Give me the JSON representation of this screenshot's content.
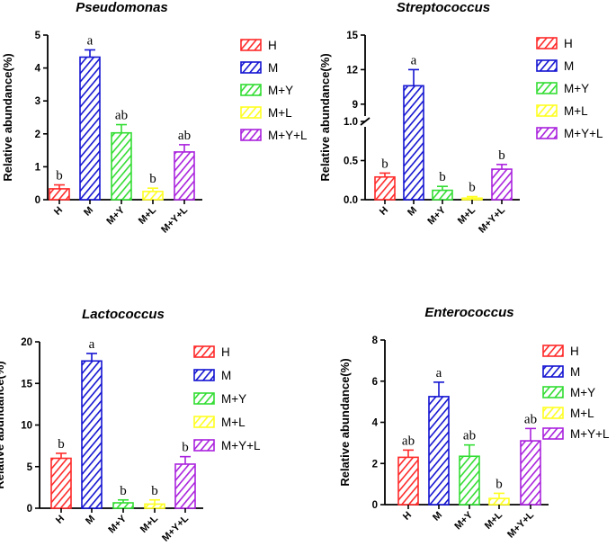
{
  "colors": {
    "H": "#ff2a2a",
    "M": "#1414d2",
    "M+Y": "#33dd33",
    "M+L": "#ffff22",
    "M+Y+L": "#aa22dd"
  },
  "chart_data": [
    {
      "type": "bar",
      "title": "Pseudomonas",
      "ylabel": "Relative abundance(%)",
      "xlabel": "",
      "categories": [
        "H",
        "M",
        "M+Y",
        "M+L",
        "M+Y+L"
      ],
      "values": [
        0.33,
        4.33,
        2.03,
        0.25,
        1.45
      ],
      "errors": [
        0.12,
        0.22,
        0.25,
        0.1,
        0.22
      ],
      "significance": [
        "b",
        "a",
        "ab",
        "b",
        "ab"
      ],
      "ylim": [
        0,
        5
      ],
      "yticks": [
        "0",
        "1",
        "2",
        "3",
        "4",
        "5"
      ],
      "legend": [
        "H",
        "M",
        "M+Y",
        "M+L",
        "M+Y+L"
      ]
    },
    {
      "type": "bar",
      "title": "Streptococcus",
      "ylabel": "Relative abundance(%)",
      "xlabel": "",
      "categories": [
        "H",
        "M",
        "M+Y",
        "M+L",
        "M+Y+L"
      ],
      "values": [
        0.29,
        10.6,
        0.12,
        0.02,
        0.39
      ],
      "errors": [
        0.05,
        1.4,
        0.05,
        0.02,
        0.06
      ],
      "significance": [
        "b",
        "a",
        "b",
        "b",
        "b"
      ],
      "ylim": [
        0,
        15
      ],
      "axis_break": [
        1,
        7.5
      ],
      "yticks": [
        "0.0",
        "0.5",
        "1.0",
        "9",
        "12",
        "15"
      ],
      "legend": [
        "H",
        "M",
        "M+Y",
        "M+L",
        "M+Y+L"
      ]
    },
    {
      "type": "bar",
      "title": "Lactococcus",
      "ylabel": "Relative abundance(%)",
      "xlabel": "",
      "categories": [
        "H",
        "M",
        "M+Y",
        "M+L",
        "M+Y+L"
      ],
      "values": [
        6.0,
        17.7,
        0.65,
        0.5,
        5.3
      ],
      "errors": [
        0.6,
        0.9,
        0.35,
        0.5,
        0.9
      ],
      "significance": [
        "b",
        "a",
        "b",
        "b",
        "b"
      ],
      "ylim": [
        0,
        20
      ],
      "yticks": [
        "0",
        "5",
        "10",
        "15",
        "20"
      ],
      "legend": [
        "H",
        "M",
        "M+Y",
        "M+L",
        "M+Y+L"
      ]
    },
    {
      "type": "bar",
      "title": "Enterococcus",
      "ylabel": "Relative abundance(%)",
      "xlabel": "",
      "categories": [
        "H",
        "M",
        "M+Y",
        "M+L",
        "M+Y+L"
      ],
      "values": [
        2.3,
        5.25,
        2.35,
        0.3,
        3.1
      ],
      "errors": [
        0.35,
        0.7,
        0.55,
        0.25,
        0.6
      ],
      "significance": [
        "ab",
        "a",
        "ab",
        "b",
        "ab"
      ],
      "ylim": [
        0,
        8
      ],
      "yticks": [
        "0",
        "2",
        "4",
        "6",
        "8"
      ],
      "legend": [
        "H",
        "M",
        "M+Y",
        "M+L",
        "M+Y+L"
      ]
    }
  ]
}
